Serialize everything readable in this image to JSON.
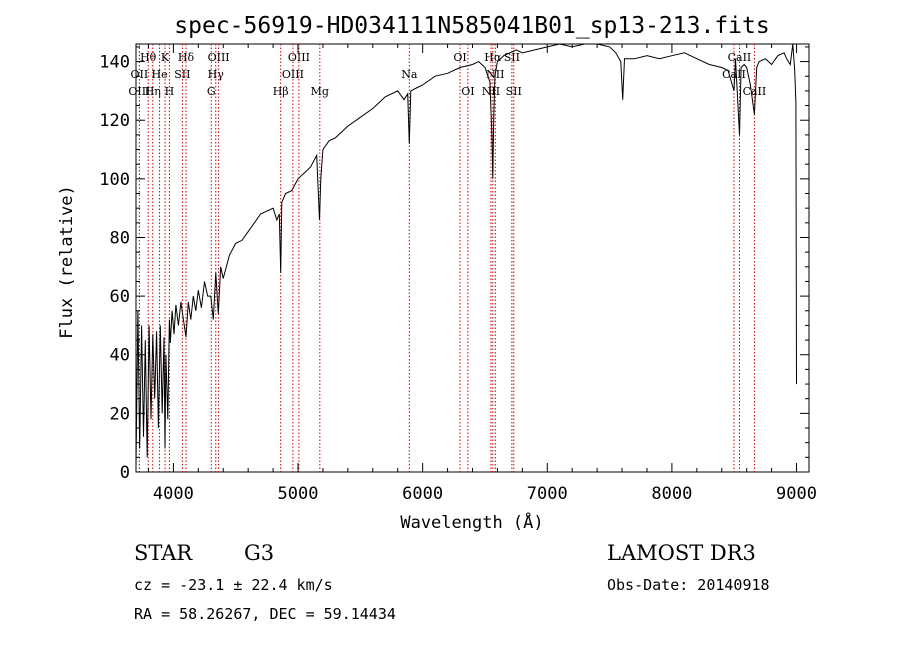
{
  "chart_data": {
    "type": "line",
    "title": "spec-56919-HD034111N585041B01_sp13-213.fits",
    "xlabel": "Wavelength (Å)",
    "ylabel": "Flux (relative)",
    "xlim": [
      3700,
      9100
    ],
    "ylim": [
      0,
      146
    ],
    "xticks": [
      4000,
      5000,
      6000,
      7000,
      8000,
      9000
    ],
    "yticks": [
      0,
      20,
      40,
      60,
      80,
      100,
      120,
      140
    ],
    "series": [
      {
        "color": "#000000",
        "x": [
          3700,
          3715,
          3730,
          3745,
          3760,
          3775,
          3790,
          3805,
          3820,
          3835,
          3850,
          3865,
          3880,
          3895,
          3910,
          3925,
          3933,
          3940,
          3955,
          3968,
          3975,
          3990,
          4005,
          4020,
          4040,
          4060,
          4080,
          4101,
          4120,
          4140,
          4160,
          4180,
          4200,
          4225,
          4250,
          4275,
          4300,
          4320,
          4340,
          4360,
          4380,
          4400,
          4450,
          4500,
          4550,
          4600,
          4650,
          4700,
          4750,
          4800,
          4830,
          4850,
          4861,
          4870,
          4900,
          4950,
          5000,
          5050,
          5100,
          5150,
          5172,
          5183,
          5200,
          5250,
          5300,
          5400,
          5500,
          5600,
          5700,
          5800,
          5850,
          5880,
          5893,
          5905,
          5950,
          6000,
          6100,
          6200,
          6300,
          6400,
          6450,
          6500,
          6540,
          6556,
          6563,
          6570,
          6580,
          6600,
          6650,
          6700,
          6750,
          6800,
          6900,
          7000,
          7100,
          7200,
          7300,
          7400,
          7500,
          7550,
          7590,
          7605,
          7620,
          7700,
          7800,
          7900,
          8000,
          8100,
          8200,
          8300,
          8400,
          8450,
          8498,
          8510,
          8542,
          8555,
          8580,
          8600,
          8630,
          8662,
          8680,
          8700,
          8750,
          8800,
          8850,
          8900,
          8920,
          8950,
          8970,
          8985,
          8995,
          9000
        ],
        "y": [
          2,
          55,
          8,
          50,
          12,
          45,
          5,
          50,
          18,
          47,
          25,
          48,
          15,
          50,
          20,
          46,
          8,
          40,
          18,
          52,
          44,
          55,
          47,
          57,
          50,
          58,
          52,
          46,
          58,
          52,
          60,
          55,
          62,
          56,
          65,
          60,
          60,
          52,
          68,
          54,
          70,
          66,
          74,
          78,
          79,
          82,
          85,
          88,
          89,
          90,
          86,
          88,
          68,
          92,
          95,
          96,
          100,
          102,
          104,
          108,
          86,
          100,
          110,
          113,
          114,
          118,
          121,
          124,
          128,
          130,
          127,
          129,
          112,
          130,
          131,
          132,
          135,
          136,
          138,
          139,
          140,
          138,
          133,
          115,
          100,
          120,
          135,
          140,
          142,
          143,
          144,
          143,
          144,
          145,
          146,
          145,
          146,
          147,
          145,
          143,
          140,
          127,
          141,
          141,
          142,
          141,
          142,
          143,
          141,
          139,
          138,
          137,
          130,
          141,
          115,
          138,
          139,
          138,
          132,
          122,
          138,
          140,
          141,
          139,
          142,
          143,
          141,
          139,
          147,
          137,
          126,
          30
        ]
      }
    ],
    "annotations": [
      {
        "label": "Hθ",
        "x": 3798,
        "row": 1
      },
      {
        "label": "K",
        "x": 3933,
        "row": 1
      },
      {
        "label": "Hδ",
        "x": 4101,
        "row": 1
      },
      {
        "label": "OIII",
        "x": 4363,
        "row": 1
      },
      {
        "label": "OIII",
        "x": 5007,
        "row": 1
      },
      {
        "label": "OI",
        "x": 6300,
        "row": 1
      },
      {
        "label": "Hα",
        "x": 6563,
        "row": 1
      },
      {
        "label": "SII",
        "x": 6716,
        "row": 1
      },
      {
        "label": "CaII",
        "x": 8542,
        "row": 1
      },
      {
        "label": "OII",
        "x": 3727,
        "row": 2
      },
      {
        "label": "He",
        "x": 3889,
        "row": 2
      },
      {
        "label": "SII",
        "x": 4072,
        "row": 2
      },
      {
        "label": "Hγ",
        "x": 4340,
        "row": 2
      },
      {
        "label": "OIII",
        "x": 4959,
        "row": 2
      },
      {
        "label": "Na",
        "x": 5893,
        "row": 2
      },
      {
        "label": "NII",
        "x": 6583,
        "row": 2
      },
      {
        "label": "CaII",
        "x": 8498,
        "row": 2
      },
      {
        "label": "OIII",
        "x": 3727,
        "row": 3
      },
      {
        "label": "Hη",
        "x": 3835,
        "row": 3
      },
      {
        "label": "H",
        "x": 3968,
        "row": 3
      },
      {
        "label": "G",
        "x": 4304,
        "row": 3
      },
      {
        "label": "Hβ",
        "x": 4861,
        "row": 3
      },
      {
        "label": "Mg",
        "x": 5175,
        "row": 3
      },
      {
        "label": "OI",
        "x": 6363,
        "row": 3
      },
      {
        "label": "NII",
        "x": 6548,
        "row": 3
      },
      {
        "label": "SII",
        "x": 6731,
        "row": 3
      },
      {
        "label": "CaII",
        "x": 8662,
        "row": 3
      }
    ],
    "line_marks": [
      3727,
      3798,
      3835,
      3889,
      3933,
      3968,
      4072,
      4101,
      4304,
      4340,
      4363,
      4861,
      4959,
      5007,
      5175,
      5893,
      6300,
      6363,
      6548,
      6563,
      6583,
      6716,
      6731,
      8498,
      8542,
      8662
    ]
  },
  "info": {
    "class_label": "STAR",
    "subclass": "G3",
    "survey": "LAMOST DR3",
    "cz": "cz = -23.1 ± 22.4 km/s",
    "obs_date": "Obs-Date: 20140918",
    "coords": "RA =  58.26267, DEC =  59.14434"
  }
}
